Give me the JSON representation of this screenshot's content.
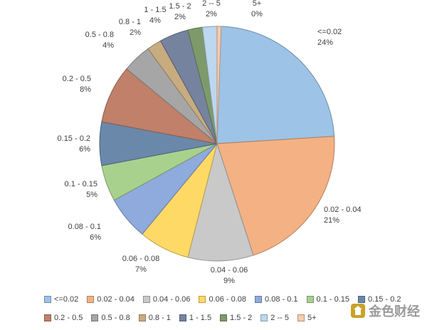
{
  "chart_data": {
    "type": "pie",
    "title": "",
    "categories": [
      "<=0.02",
      "0.02 - 0.04",
      "0.04 - 0.06",
      "0.06 - 0.08",
      "0.08 - 0.1",
      "0.1 - 0.15",
      "0.15 - 0.2",
      "0.2 -  0.5",
      "0.5 - 0.8",
      "0.8 - 1",
      "1 - 1.5",
      "1.5 - 2",
      "2 -- 5",
      "5+"
    ],
    "values": [
      24,
      21,
      9,
      7,
      6,
      5,
      6,
      8,
      4,
      2,
      4,
      2,
      2,
      0
    ],
    "data_labels": [
      "24%",
      "21%",
      "9%",
      "7%",
      "6%",
      "5%",
      "6%",
      "8%",
      "4%",
      "2%",
      "4%",
      "2%",
      "2%",
      "0%"
    ],
    "colors": [
      "#9dc3e6",
      "#f4b183",
      "#c9c9c9",
      "#ffd966",
      "#8faadc",
      "#a9d18e",
      "#6a88aa",
      "#c0806a",
      "#a6a6a6",
      "#c7ac7f",
      "#76839f",
      "#7e9a6b",
      "#bdd7ee",
      "#f8cbad"
    ],
    "legend_position": "bottom"
  },
  "legend": {
    "labels": [
      "<=0.02",
      "0.02 - 0.04",
      "0.04 - 0.06",
      "0.06 - 0.08",
      "0.08 - 0.1",
      "0.1 - 0.15",
      "0.15 - 0.2",
      "0.2 -  0.5",
      "0.5 - 0.8",
      "0.8 - 1",
      "1 - 1.5",
      "1.5 - 2",
      "2 -- 5",
      "5+"
    ]
  },
  "watermark": {
    "text": "金色财经"
  }
}
